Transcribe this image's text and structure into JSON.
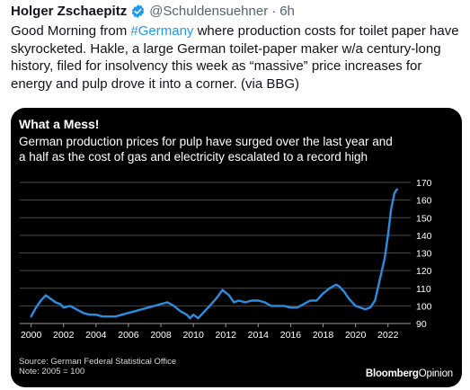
{
  "tweet": {
    "author": "Holger Zschaepitz",
    "handle": "@Schuldensuehner",
    "separator": "·",
    "time": "6h",
    "text_before_tag": "Good Morning from ",
    "hashtag": "#Germany",
    "text_after_tag": " where production costs for toilet paper have skyrocketed. Hakle, a large German toilet-paper maker w/a century-long history, filed for insolvency this week as “massive” price increases for energy and pulp drove it into a corner. (via BBG)",
    "colors": {
      "text": "#0f1419",
      "muted": "#536471",
      "accent": "#1d9bf0"
    }
  },
  "card": {
    "title": "What a Mess!",
    "subtitle": "German production prices for pulp have surged over the last year and a half as the cost of gas and electricity escalated to a record high",
    "source": "Source: German Federal Statistical Office",
    "note": "Note: 2005 = 100",
    "brand_bold": "Bloomberg",
    "brand_light": "Opinion"
  },
  "chart_data": {
    "type": "line",
    "line_color": "#2a8de0",
    "ylim": [
      90,
      170
    ],
    "yticks": [
      "170",
      "160",
      "150",
      "140",
      "130",
      "120",
      "110",
      "100",
      "90"
    ],
    "xticks": [
      "2000",
      "2002",
      "2004",
      "2006",
      "2008",
      "2010",
      "2012",
      "2014",
      "2016",
      "2018",
      "2020",
      "2022"
    ],
    "grid": true,
    "series": [
      {
        "x": [
          2000.0,
          2000.3,
          2000.6,
          2000.9,
          2001.2,
          2001.5,
          2001.8,
          2002.0,
          2002.4,
          2002.8,
          2003.2,
          2003.6,
          2004.0,
          2004.4,
          2004.8,
          2005.2,
          2005.6,
          2006.0,
          2006.4,
          2006.8,
          2007.2,
          2007.6,
          2008.0,
          2008.4,
          2008.8,
          2009.2,
          2009.6,
          2009.8,
          2010.0,
          2010.3,
          2010.6,
          2011.0,
          2011.4,
          2011.8,
          2012.2,
          2012.5,
          2012.8,
          2013.2,
          2013.6,
          2014.0,
          2014.4,
          2014.8,
          2015.2,
          2015.6,
          2016.0,
          2016.4,
          2016.8,
          2017.2,
          2017.6,
          2018.0,
          2018.4,
          2018.8,
          2019.0,
          2019.3,
          2019.6,
          2020.0,
          2020.3,
          2020.6,
          2020.9,
          2021.2,
          2021.5,
          2021.8,
          2022.0,
          2022.2,
          2022.4,
          2022.55
        ],
        "y": [
          94,
          99,
          103,
          106,
          104,
          102,
          101,
          99,
          100,
          98,
          96,
          95,
          95,
          94,
          94,
          94,
          95,
          96,
          97,
          98,
          99,
          100,
          101,
          102,
          100,
          97,
          95,
          93,
          95,
          93,
          96,
          100,
          104,
          109,
          106,
          102,
          103,
          102,
          103,
          103,
          102,
          100,
          100,
          100,
          99,
          99,
          101,
          103,
          103,
          107,
          110,
          112,
          111,
          108,
          104,
          100,
          99,
          98,
          99,
          103,
          115,
          127,
          140,
          155,
          164,
          166
        ]
      }
    ]
  }
}
